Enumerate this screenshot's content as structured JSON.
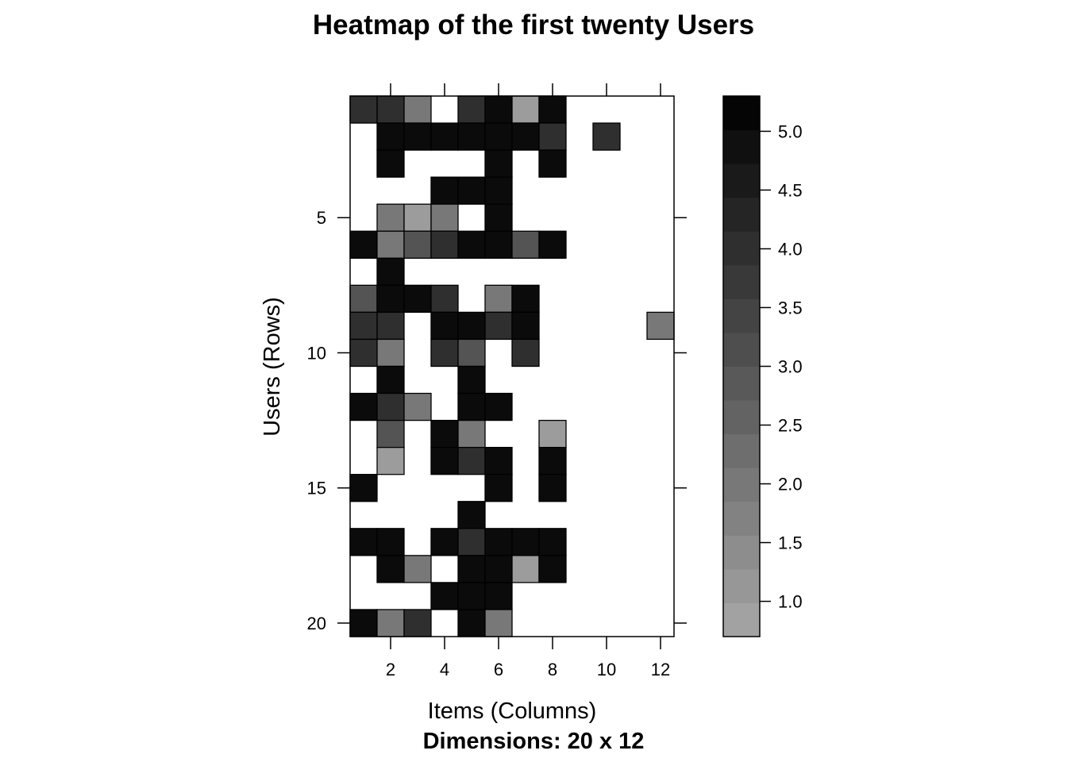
{
  "chart_data": {
    "type": "heatmap",
    "title": "Heatmap of the first twenty Users",
    "xlabel": "Items (Columns)",
    "ylabel": "Users (Rows)",
    "sub": "Dimensions: 20 x 12",
    "rows": 20,
    "cols": 12,
    "x_ticks": [
      2,
      4,
      6,
      8,
      10,
      12
    ],
    "y_ticks": [
      5,
      10,
      15,
      20
    ],
    "colorbar": {
      "range": [
        0.7,
        5.3
      ],
      "ticks": [
        1.0,
        1.5,
        2.0,
        2.5,
        3.0,
        3.5,
        4.0,
        4.5,
        5.0
      ],
      "tick_labels": [
        "1.0",
        "1.5",
        "2.0",
        "2.5",
        "3.0",
        "3.5",
        "4.0",
        "4.5",
        "5.0"
      ],
      "color_low": "#a7a7a7",
      "color_high": "#000000"
    },
    "values": [
      [
        4,
        4,
        2,
        null,
        4,
        5,
        1,
        5,
        null,
        null,
        null,
        null
      ],
      [
        null,
        5,
        5,
        5,
        5,
        5,
        5,
        4,
        null,
        4,
        null,
        null
      ],
      [
        null,
        5,
        null,
        null,
        null,
        5,
        null,
        5,
        null,
        null,
        null,
        null
      ],
      [
        null,
        null,
        null,
        5,
        5,
        5,
        null,
        null,
        null,
        null,
        null,
        null
      ],
      [
        null,
        2,
        1,
        2,
        null,
        5,
        null,
        null,
        null,
        null,
        null,
        null
      ],
      [
        5,
        2,
        3,
        4,
        5,
        5,
        3,
        5,
        null,
        null,
        null,
        null
      ],
      [
        null,
        5,
        null,
        null,
        null,
        null,
        null,
        null,
        null,
        null,
        null,
        null
      ],
      [
        3,
        5,
        5,
        4,
        null,
        2,
        5,
        null,
        null,
        null,
        null,
        null
      ],
      [
        4,
        4,
        null,
        5,
        5,
        4,
        5,
        null,
        null,
        null,
        null,
        2
      ],
      [
        4,
        2,
        null,
        4,
        3,
        null,
        4,
        null,
        null,
        null,
        null,
        null
      ],
      [
        null,
        5,
        null,
        null,
        5,
        null,
        null,
        null,
        null,
        null,
        null,
        null
      ],
      [
        5,
        4,
        2,
        null,
        5,
        5,
        null,
        null,
        null,
        null,
        null,
        null
      ],
      [
        null,
        3,
        null,
        5,
        2,
        null,
        null,
        1,
        null,
        null,
        null,
        null
      ],
      [
        null,
        1,
        null,
        5,
        4,
        5,
        null,
        5,
        null,
        null,
        null,
        null
      ],
      [
        5,
        null,
        null,
        null,
        null,
        5,
        null,
        5,
        null,
        null,
        null,
        null
      ],
      [
        null,
        null,
        null,
        null,
        5,
        null,
        null,
        null,
        null,
        null,
        null,
        null
      ],
      [
        5,
        5,
        null,
        5,
        4,
        5,
        5,
        5,
        null,
        null,
        null,
        null
      ],
      [
        null,
        5,
        2,
        null,
        5,
        5,
        1,
        5,
        null,
        null,
        null,
        null
      ],
      [
        null,
        null,
        null,
        5,
        5,
        5,
        null,
        null,
        null,
        null,
        null,
        null
      ],
      [
        5,
        2,
        4,
        null,
        5,
        2,
        null,
        null,
        null,
        null,
        null,
        null
      ]
    ]
  }
}
